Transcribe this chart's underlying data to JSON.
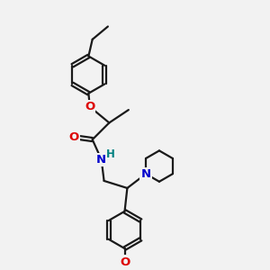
{
  "bg_color": "#f2f2f2",
  "bond_color": "#1a1a1a",
  "atom_colors": {
    "O": "#dd0000",
    "N": "#0000cc",
    "NH": "#008080"
  },
  "line_width": 1.6,
  "font_size": 8.5,
  "fig_size": [
    3.0,
    3.0
  ],
  "dpi": 100
}
